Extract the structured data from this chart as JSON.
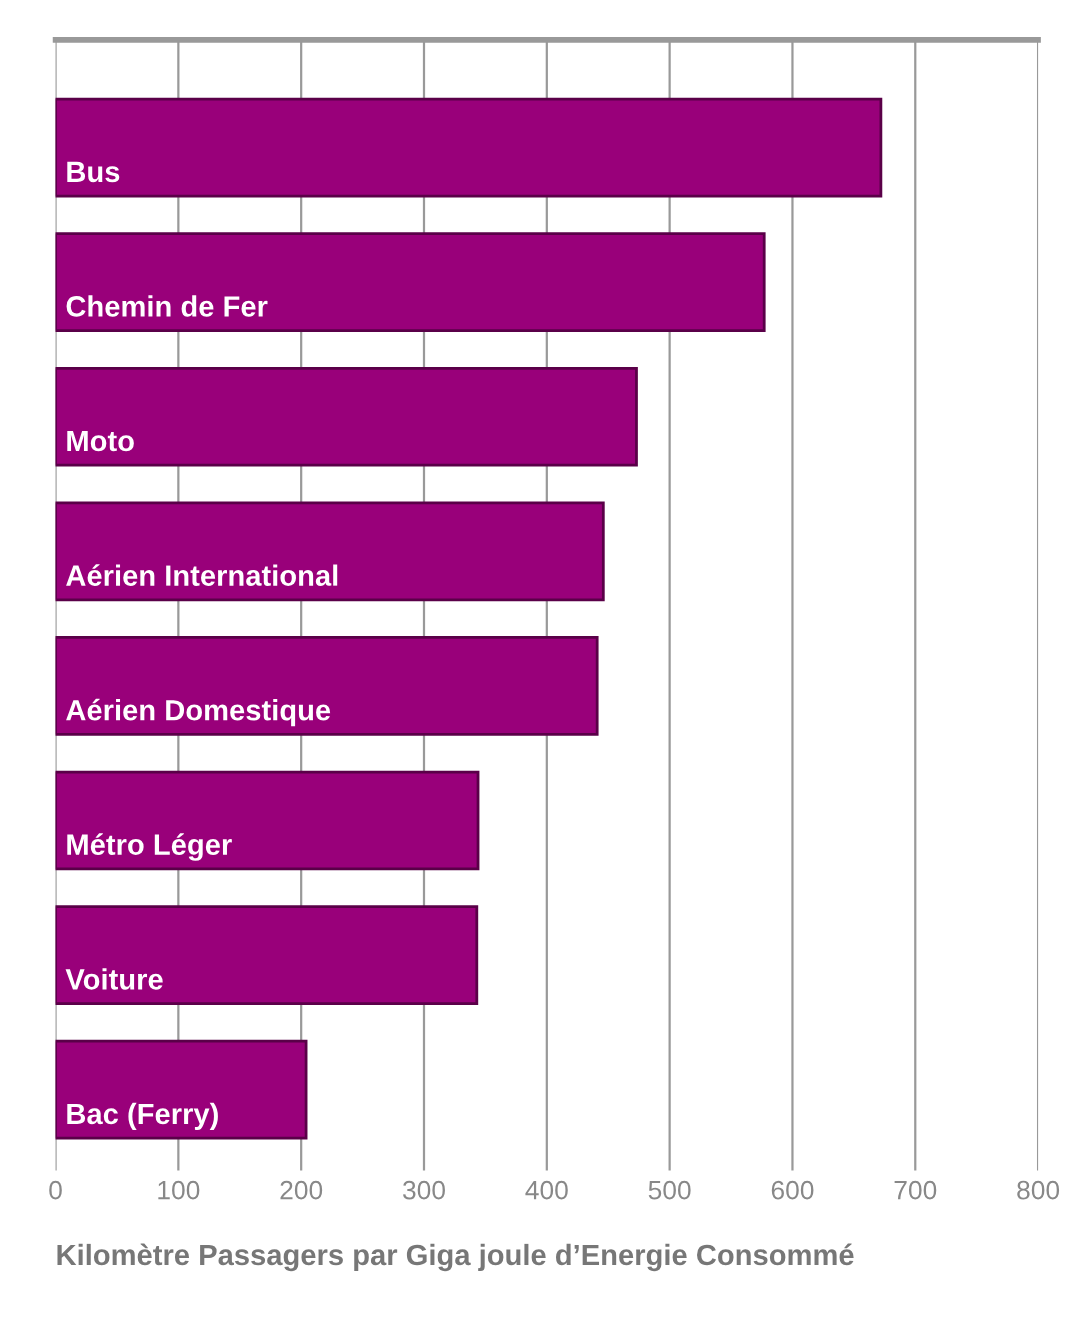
{
  "chart_data": {
    "type": "bar",
    "orientation": "horizontal",
    "xlabel": "Kilomètre Passagers par Giga joule d’Energie Consommé",
    "categories": [
      "Bus",
      "Chemin de Fer",
      "Moto",
      "Aérien International",
      "Aérien Domestique",
      "Métro Léger",
      "Voiture",
      "Bac (Ferry)"
    ],
    "values": [
      672,
      577,
      473,
      446,
      441,
      344,
      343,
      204
    ],
    "color": "#99007a",
    "xlim": [
      0,
      800
    ],
    "xticks": [
      0,
      100,
      200,
      300,
      400,
      500,
      600,
      700,
      800
    ],
    "grid": "x"
  }
}
